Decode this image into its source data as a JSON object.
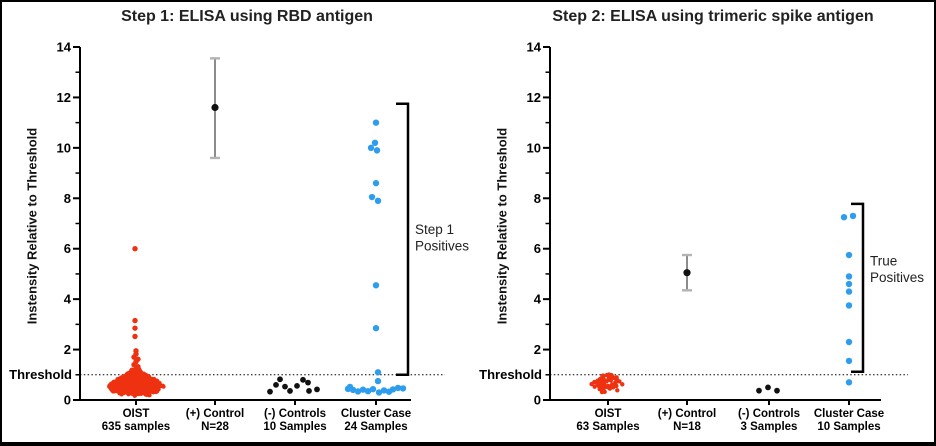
{
  "figure": {
    "colors": {
      "red": "#ee3211",
      "blue": "#2e9ded",
      "black": "#111111",
      "error_line": "#707070",
      "error_cap": "#b3b3b3",
      "axis": "#000000"
    }
  },
  "chart_data": [
    {
      "type": "scatter",
      "title": "Step 1: ELISA using RBD antigen",
      "ylabel": "Instensity Relative to Threshold",
      "ylim": [
        0,
        14
      ],
      "yticks": [
        0,
        2,
        4,
        6,
        8,
        10,
        12,
        14
      ],
      "grid": false,
      "threshold": {
        "value": 1,
        "label": "Threshold"
      },
      "categories": [
        {
          "line1": "OIST",
          "line2": "635 samples"
        },
        {
          "line1": "(+) Control",
          "line2": "N=28"
        },
        {
          "line1": "(-) Controls",
          "line2": "10 Samples"
        },
        {
          "line1": "Cluster Case",
          "line2": "24 Samples"
        }
      ],
      "series": [
        {
          "name": "OIST",
          "kind": "dense-swarm",
          "color": "red",
          "count": 620,
          "y_min": 0.12,
          "y_max": 1.15,
          "profile": [
            [
              0.12,
              10
            ],
            [
              0.3,
              22
            ],
            [
              0.55,
              28
            ],
            [
              0.8,
              20
            ],
            [
              1.0,
              10
            ],
            [
              1.15,
              5
            ]
          ],
          "extra_points": [
            [
              -1,
              6.0
            ],
            [
              -1,
              3.15
            ],
            [
              -1,
              2.85
            ],
            [
              -1,
              2.52
            ],
            [
              0,
              1.95
            ],
            [
              0,
              1.82
            ],
            [
              -2,
              1.7
            ],
            [
              2,
              1.62
            ],
            [
              0,
              1.52
            ],
            [
              -2,
              1.4
            ],
            [
              2,
              1.32
            ],
            [
              0,
              1.24
            ],
            [
              -4,
              1.18
            ],
            [
              4,
              1.12
            ]
          ]
        },
        {
          "name": "(+) Control",
          "kind": "mean-error",
          "mean": 11.6,
          "err_low": 9.6,
          "err_high": 13.55
        },
        {
          "name": "(-) Controls",
          "kind": "points",
          "color": "black",
          "points": [
            [
              -25,
              0.33
            ],
            [
              -19,
              0.6
            ],
            [
              -15,
              0.82
            ],
            [
              -10,
              0.53
            ],
            [
              -5,
              0.36
            ],
            [
              2,
              0.56
            ],
            [
              8,
              0.8
            ],
            [
              13,
              0.69
            ],
            [
              14,
              0.36
            ],
            [
              22,
              0.42
            ]
          ]
        },
        {
          "name": "Cluster Case",
          "kind": "points",
          "color": "blue",
          "points": [
            [
              0,
              11.0
            ],
            [
              -1,
              10.2
            ],
            [
              -5,
              10.0
            ],
            [
              1,
              9.9
            ],
            [
              0,
              8.6
            ],
            [
              -4,
              8.05
            ],
            [
              2,
              7.9
            ],
            [
              0,
              4.55
            ],
            [
              0,
              2.85
            ],
            [
              2,
              1.1
            ],
            [
              2,
              0.75
            ],
            [
              -28,
              0.44
            ],
            [
              -23,
              0.4
            ],
            [
              -18,
              0.34
            ],
            [
              -13,
              0.41
            ],
            [
              -8,
              0.35
            ],
            [
              -3,
              0.43
            ],
            [
              3,
              0.3
            ],
            [
              8,
              0.38
            ],
            [
              13,
              0.33
            ],
            [
              17,
              0.42
            ],
            [
              22,
              0.48
            ],
            [
              27,
              0.46
            ],
            [
              -26,
              0.52
            ]
          ]
        }
      ],
      "bracket": {
        "from": 1.0,
        "to": 11.75,
        "label_lines": [
          "Step 1",
          "Positives"
        ],
        "label_center": 6.3
      }
    },
    {
      "type": "scatter",
      "title": "Step 2: ELISA using trimeric spike antigen",
      "ylabel": "Instensity Relative to Threshold",
      "ylim": [
        0,
        14
      ],
      "yticks": [
        0,
        2,
        4,
        6,
        8,
        10,
        12,
        14
      ],
      "grid": false,
      "threshold": {
        "value": 1,
        "label": "Threshold"
      },
      "categories": [
        {
          "line1": "OIST",
          "line2": "63 Samples"
        },
        {
          "line1": "(+) Control",
          "line2": "N=18"
        },
        {
          "line1": "(-) Controls",
          "line2": "3 Samples"
        },
        {
          "line1": "Cluster Case",
          "line2": "10 Samples"
        }
      ],
      "series": [
        {
          "name": "OIST",
          "kind": "dense-swarm",
          "color": "red",
          "count": 63,
          "y_min": 0.28,
          "y_max": 1.08,
          "profile": [
            [
              0.28,
              6
            ],
            [
              0.5,
              14
            ],
            [
              0.65,
              17
            ],
            [
              0.85,
              10
            ],
            [
              1.08,
              4
            ]
          ],
          "extra_points": []
        },
        {
          "name": "(+) Control",
          "kind": "mean-error",
          "mean": 5.05,
          "err_low": 4.35,
          "err_high": 5.75
        },
        {
          "name": "(-) Controls",
          "kind": "points",
          "color": "black",
          "points": [
            [
              -10,
              0.37
            ],
            [
              -1,
              0.5
            ],
            [
              8,
              0.37
            ]
          ]
        },
        {
          "name": "Cluster Case",
          "kind": "points",
          "color": "blue",
          "points": [
            [
              -5,
              7.25
            ],
            [
              4,
              7.3
            ],
            [
              0,
              5.75
            ],
            [
              0,
              4.9
            ],
            [
              0,
              4.6
            ],
            [
              0,
              4.3
            ],
            [
              0,
              3.75
            ],
            [
              0,
              2.3
            ],
            [
              0,
              1.55
            ],
            [
              0,
              0.7
            ]
          ]
        }
      ],
      "bracket": {
        "from": 1.12,
        "to": 7.78,
        "label_lines": [
          "True",
          "Positives"
        ],
        "label_center": 5.05
      }
    }
  ]
}
